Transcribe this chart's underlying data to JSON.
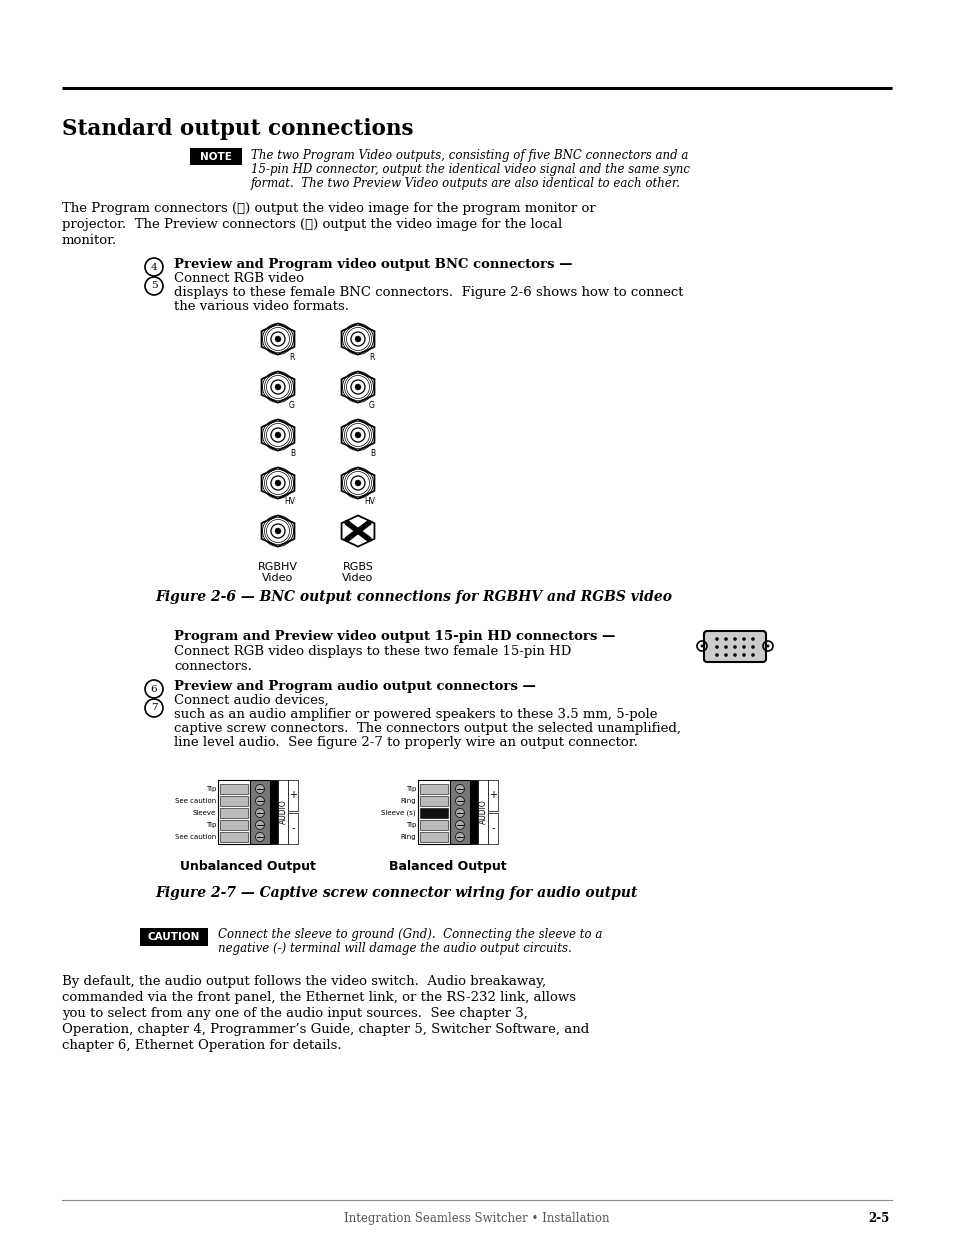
{
  "title": "Standard output connections",
  "bg_color": "#ffffff",
  "text_color": "#000000",
  "page_width": 9.54,
  "page_height": 12.35,
  "note_label": "NOTE",
  "note_body_line1": "The two Program Video outputs, consisting of five BNC connectors and a",
  "note_body_line2": "15-pin HD connector, output the identical video signal and the same sync",
  "note_body_line3": "format.  The two Preview Video outputs are also identical to each other.",
  "caution_label": "CAUTION",
  "caution_body_line1": "Connect the sleeve to ground (Gnd).  Connecting the sleeve to a",
  "caution_body_line2": "negative (-) terminal will damage the audio output circuits.",
  "para1_line1": "The Program connectors (⑤) output the video image for the program monitor or",
  "para1_line2": "projector.  The Preview connectors (⑥) output the video image for the local",
  "para1_line3": "monitor.",
  "bullet45_bold": "Preview and Program video output BNC connectors —",
  "bullet45_normal_line1": "Connect RGB video",
  "bullet45_normal_line2": "displays to these female BNC connectors.  Figure 2-6 shows how to connect",
  "bullet45_normal_line3": "the various video formats.",
  "bnc_left_labels": [
    "R",
    "G",
    "B",
    "HV",
    "RGBHV\nVideo"
  ],
  "bnc_right_labels": [
    "R",
    "G",
    "B",
    "HV",
    "RGBS\nVideo"
  ],
  "fig26_caption": "Figure 2-6 — BNC output connections for RGBHV and RGBS video",
  "hd_bold": "Program and Preview video output 15-pin HD connectors —",
  "hd_normal_line1": "Connect RGB video displays to these two female 15-pin HD",
  "hd_normal_line2": "connectors.",
  "bullet67_bold": "Preview and Program audio output connectors —",
  "bullet67_normal_line1": "Connect audio devices,",
  "bullet67_normal_line2": "such as an audio amplifier or powered speakers to these 3.5 mm, 5-pole",
  "bullet67_normal_line3": "captive screw connectors.  The connectors output the selected unamplified,",
  "bullet67_normal_line4": "line level audio.  See figure 2-7 to properly wire an output connector.",
  "wire_labels_unbal": [
    "Tip",
    "See caution",
    "Sleeve",
    "Tip",
    "See caution"
  ],
  "wire_labels_bal": [
    "Tip",
    "Ring",
    "Sleeve (s)",
    "Tip",
    "Ring"
  ],
  "unbalanced_label": "Unbalanced Output",
  "balanced_label": "Balanced Output",
  "fig27_caption": "Figure 2-7 — Captive screw connector wiring for audio output",
  "para_last_line1": "By default, the audio output follows the video switch.  Audio breakaway,",
  "para_last_line2": "commanded via the front panel, the Ethernet link, or the RS-232 link, allows",
  "para_last_line3": "you to select from any one of the audio input sources.  See chapter 3,",
  "para_last_line4": "Operation, chapter 4, Programmer’s Guide, chapter 5, Switcher Software, and",
  "para_last_line5": "chapter 6, Ethernet Operation for details.",
  "footer_text": "Integration Seamless Switcher • Installation",
  "footer_page": "2-5"
}
